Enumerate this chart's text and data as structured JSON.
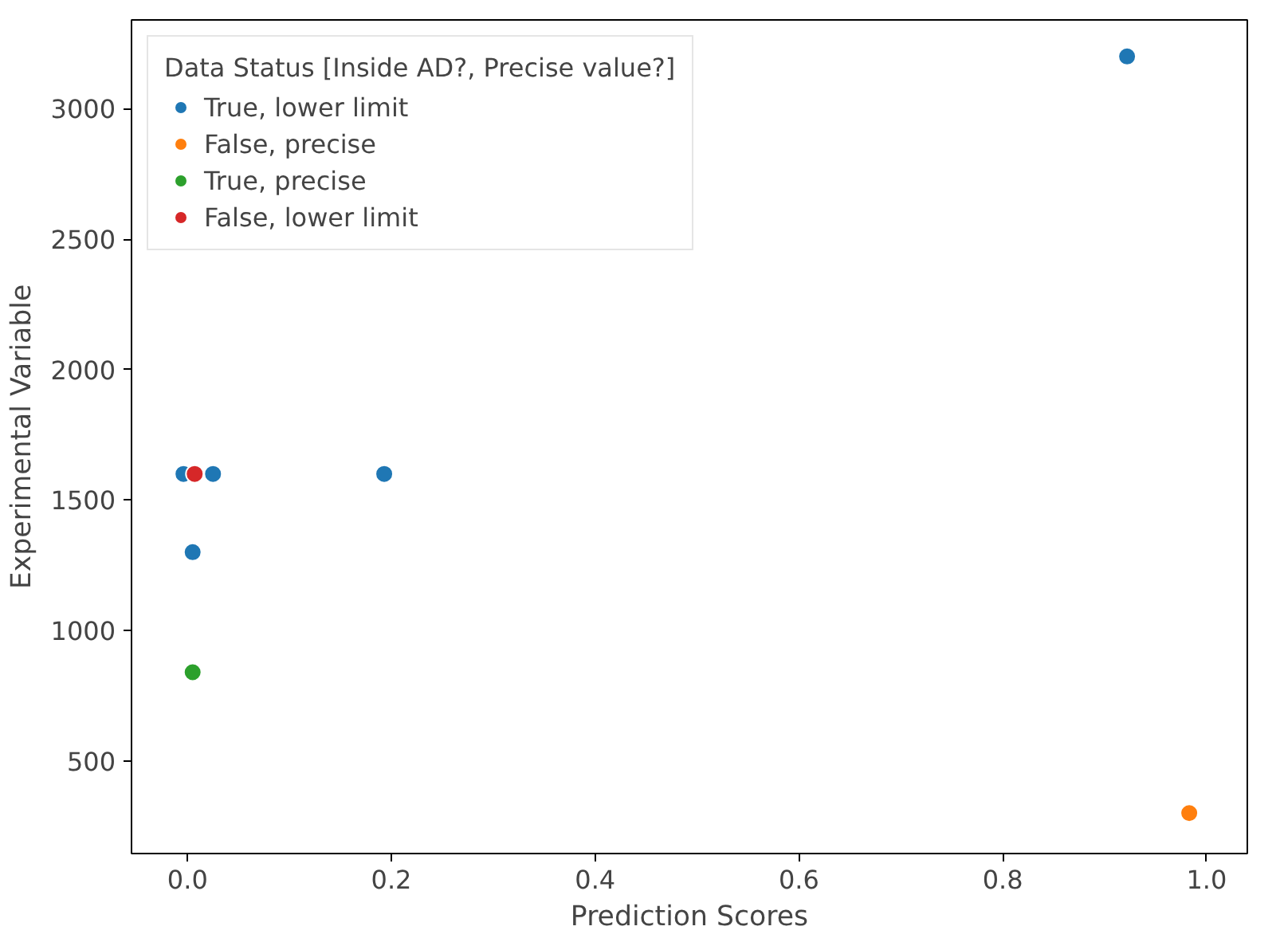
{
  "chart_data": {
    "type": "scatter",
    "xlabel": "Prediction Scores",
    "ylabel": "Experimental Variable",
    "legend_title": "Data Status [Inside AD?, Precise value?]",
    "series": [
      {
        "name": "True, lower limit",
        "color": "#1f77b4",
        "x": [
          -0.004,
          0.025,
          0.193,
          0.005,
          0.922
        ],
        "values": [
          1600,
          1600,
          1600,
          1300,
          3200
        ]
      },
      {
        "name": "False, precise",
        "color": "#ff7f0e",
        "x": [
          0.983
        ],
        "values": [
          300
        ]
      },
      {
        "name": "True, precise",
        "color": "#2ca02c",
        "x": [
          0.005
        ],
        "values": [
          840
        ]
      },
      {
        "name": "False, lower limit",
        "color": "#d62728",
        "x": [
          0.007
        ],
        "values": [
          1600
        ]
      }
    ],
    "xlim": [
      -0.055,
      1.04
    ],
    "ylim": [
      145,
      3340
    ],
    "xticks": [
      {
        "value": 0,
        "label": "0.0"
      },
      0.2,
      0.4,
      0.6,
      0.8,
      {
        "value": 1,
        "label": "1.0"
      }
    ],
    "yticks": [
      500,
      1000,
      1500,
      2000,
      2500,
      3000
    ],
    "grid": false,
    "legend": "top left",
    "marker": "circle"
  }
}
